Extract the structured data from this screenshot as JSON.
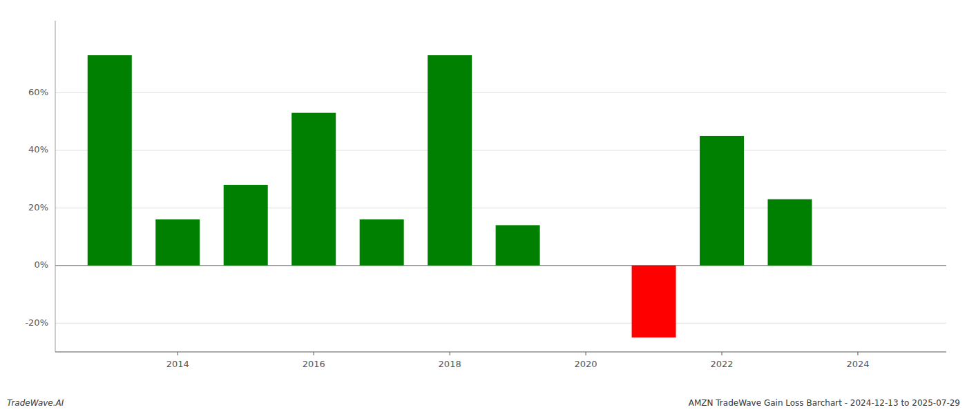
{
  "chart_data": {
    "type": "bar",
    "x": [
      2013,
      2014,
      2015,
      2016,
      2017,
      2018,
      2019,
      2021,
      2022,
      2023
    ],
    "values": [
      73.0,
      16.0,
      28.0,
      53.0,
      16.0,
      73.0,
      14.0,
      -25.0,
      45.0,
      23.0
    ],
    "colors": [
      "#008000",
      "#008000",
      "#008000",
      "#008000",
      "#008000",
      "#008000",
      "#008000",
      "#ff0000",
      "#008000",
      "#008000"
    ],
    "xlim": [
      2012.2,
      2025.3
    ],
    "xticks": [
      2014,
      2016,
      2018,
      2020,
      2022,
      2024
    ],
    "ylim": [
      -30,
      85
    ],
    "yticks": [
      {
        "value": -20,
        "label": "-20%"
      },
      {
        "value": 0,
        "label": "0%"
      },
      {
        "value": 20,
        "label": "20%"
      },
      {
        "value": 40,
        "label": "40%"
      },
      {
        "value": 60,
        "label": "60%"
      }
    ],
    "grid": true,
    "annotations": [
      "TradeWave.AI",
      "AMZN TradeWave Gain Loss Barchart - 2024-12-13 to 2025-07-29"
    ]
  }
}
